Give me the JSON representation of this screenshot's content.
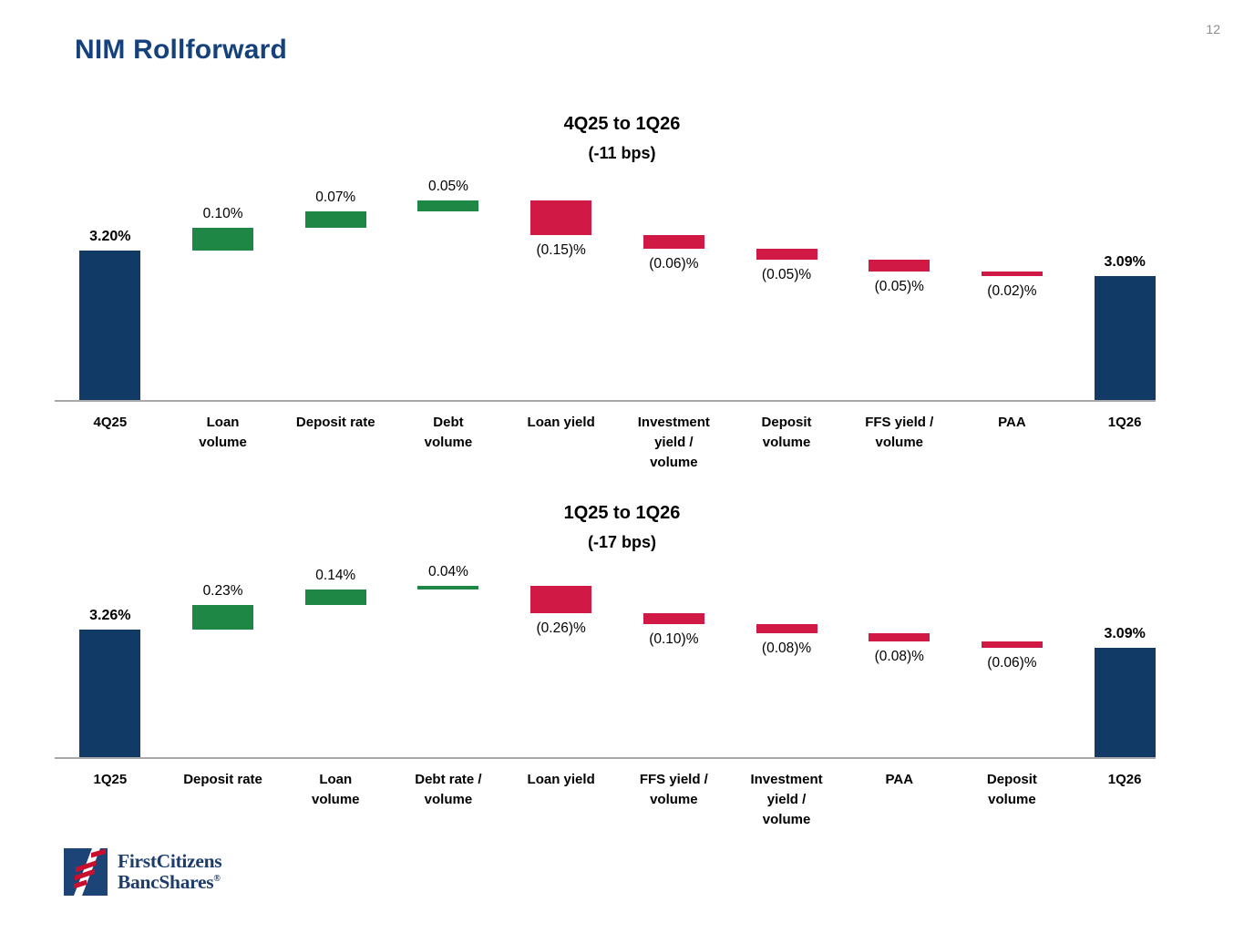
{
  "page": {
    "title": "NIM Rollforward",
    "page_number": "12"
  },
  "theme": {
    "navy": "#123a67",
    "green": "#1e8745",
    "red": "#d01944",
    "title_navy": "#15427c",
    "logo_navy": "#1e3d6b",
    "logo_red": "#c8102e",
    "logo_square_navy": "#1d4476",
    "axis_gray": "#a8a8a8",
    "pagenum_gray": "#8a8a8a"
  },
  "logo": {
    "line1": "FirstCitizens",
    "line2": "BancShares",
    "registered_mark": "®"
  },
  "chart_data": [
    {
      "type": "waterfall",
      "title": "4Q25 to 1Q26",
      "subtitle": "(-11 bps)",
      "net_change_bps": -11,
      "unit": "%",
      "color_coding": {
        "total": "navy",
        "increase": "green",
        "decrease": "red"
      },
      "start_value": 3.2,
      "end_value": 3.09,
      "bars": [
        {
          "category": "4Q25",
          "value": 3.2,
          "label": "3.20%",
          "kind": "total"
        },
        {
          "category": "Loan\nvolume",
          "value": 0.1,
          "label": "0.10%",
          "kind": "increase"
        },
        {
          "category": "Deposit rate",
          "value": 0.07,
          "label": "0.07%",
          "kind": "increase"
        },
        {
          "category": "Debt\nvolume",
          "value": 0.05,
          "label": "0.05%",
          "kind": "increase"
        },
        {
          "category": "Loan yield",
          "value": -0.15,
          "label": "(0.15)%",
          "kind": "decrease"
        },
        {
          "category": "Investment\nyield /\nvolume",
          "value": -0.06,
          "label": "(0.06)%",
          "kind": "decrease"
        },
        {
          "category": "Deposit\nvolume",
          "value": -0.05,
          "label": "(0.05)%",
          "kind": "decrease"
        },
        {
          "category": "FFS yield /\nvolume",
          "value": -0.05,
          "label": "(0.05)%",
          "kind": "decrease"
        },
        {
          "category": "PAA",
          "value": -0.02,
          "label": "(0.02)%",
          "kind": "decrease"
        },
        {
          "category": "1Q26",
          "value": 3.09,
          "label": "3.09%",
          "kind": "total"
        }
      ]
    },
    {
      "type": "waterfall",
      "title": "1Q25 to 1Q26",
      "subtitle": "(-17 bps)",
      "net_change_bps": -17,
      "unit": "%",
      "color_coding": {
        "total": "navy",
        "increase": "green",
        "decrease": "red"
      },
      "start_value": 3.26,
      "end_value": 3.09,
      "bars": [
        {
          "category": "1Q25",
          "value": 3.26,
          "label": "3.26%",
          "kind": "total"
        },
        {
          "category": "Deposit rate",
          "value": 0.23,
          "label": "0.23%",
          "kind": "increase"
        },
        {
          "category": "Loan\nvolume",
          "value": 0.14,
          "label": "0.14%",
          "kind": "increase"
        },
        {
          "category": "Debt rate /\nvolume",
          "value": 0.04,
          "label": "0.04%",
          "kind": "increase"
        },
        {
          "category": "Loan yield",
          "value": -0.26,
          "label": "(0.26)%",
          "kind": "decrease"
        },
        {
          "category": "FFS yield /\nvolume",
          "value": -0.1,
          "label": "(0.10)%",
          "kind": "decrease"
        },
        {
          "category": "Investment\nyield /\nvolume",
          "value": -0.08,
          "label": "(0.08)%",
          "kind": "decrease"
        },
        {
          "category": "PAA",
          "value": -0.08,
          "label": "(0.08)%",
          "kind": "decrease"
        },
        {
          "category": "Deposit\nvolume",
          "value": -0.06,
          "label": "(0.06)%",
          "kind": "decrease"
        },
        {
          "category": "1Q26",
          "value": 3.09,
          "label": "3.09%",
          "kind": "total"
        }
      ]
    }
  ]
}
